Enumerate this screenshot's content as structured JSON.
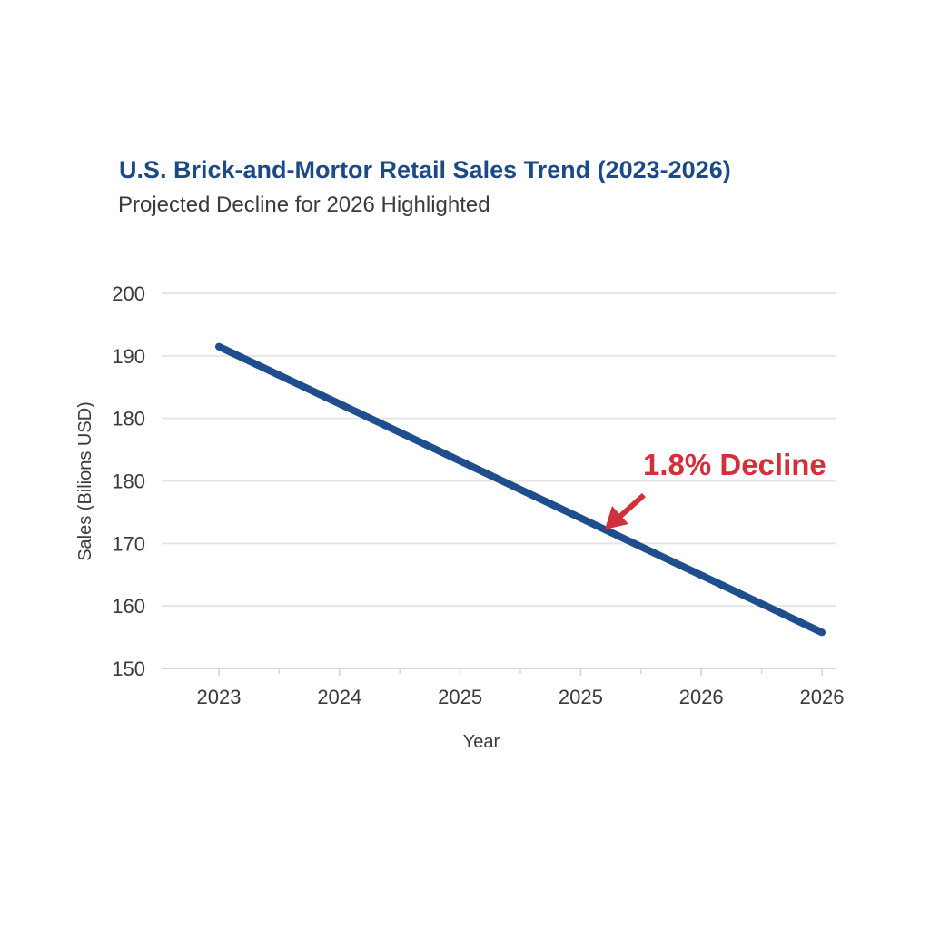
{
  "chart_data": {
    "type": "line",
    "title": "U.S. Brick-and-Mortor Retail Sales Trend (2023-2026)",
    "subtitle": "Projected Decline for 2026 Highlighted",
    "xlabel": "Year",
    "ylabel": "Sales (Bilions USD)",
    "x_tick_labels": [
      "2023",
      "2024",
      "2025",
      "2025",
      "2026",
      "2026"
    ],
    "y_tick_labels": [
      "200",
      "190",
      "180",
      "180",
      "170",
      "160",
      "150"
    ],
    "ylim": [
      150,
      200
    ],
    "grid": true,
    "series": [
      {
        "name": "Sales",
        "color": "#1f4e8c",
        "x_index": [
          0,
          5
        ],
        "values": [
          192.9,
          154.8
        ]
      }
    ],
    "annotation": {
      "text": "1.8% Decline",
      "color": "#d2303a",
      "points_to_x_index": 3.2
    }
  }
}
